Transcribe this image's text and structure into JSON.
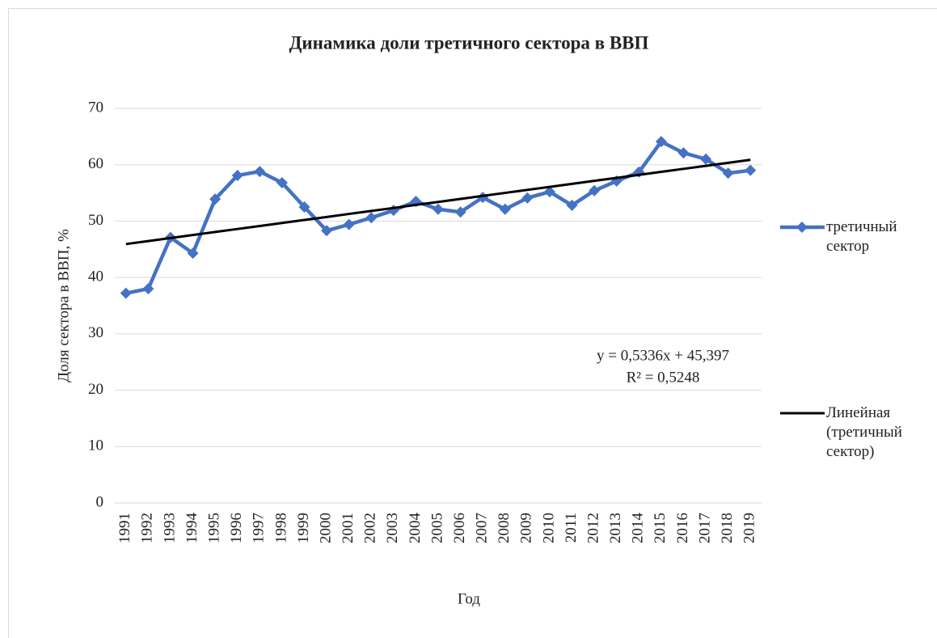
{
  "chart_data": {
    "type": "line",
    "title": "Динамика доли третичного сектора в ВВП",
    "x_label": "Год",
    "y_label": "Доля сектора в ВВП, %",
    "categories": [
      "1991",
      "1992",
      "1993",
      "1994",
      "1995",
      "1996",
      "1997",
      "1998",
      "1999",
      "2000",
      "2001",
      "2002",
      "2003",
      "2004",
      "2005",
      "2006",
      "2007",
      "2008",
      "2009",
      "2010",
      "2011",
      "2012",
      "2013",
      "2014",
      "2015",
      "2016",
      "2017",
      "2018",
      "2019"
    ],
    "series": [
      {
        "name": "третичный сектор",
        "color": "#4472c4",
        "marker": "diamond",
        "values": [
          37.2,
          38.0,
          47.1,
          44.3,
          53.9,
          58.1,
          58.8,
          56.8,
          52.5,
          48.3,
          49.4,
          50.6,
          51.9,
          53.5,
          52.1,
          51.6,
          54.2,
          52.1,
          54.1,
          55.2,
          52.8,
          55.4,
          57.1,
          58.7,
          64.1,
          62.1,
          61.0,
          58.5,
          59.0
        ]
      },
      {
        "name": "Линейная (третичный сектор)",
        "color": "#000000",
        "marker": "none",
        "values": [
          45.93,
          46.46,
          47.0,
          47.53,
          48.07,
          48.6,
          49.13,
          49.67,
          50.2,
          50.73,
          51.27,
          51.8,
          52.33,
          52.87,
          53.4,
          53.93,
          54.47,
          55.0,
          55.54,
          56.07,
          56.6,
          57.14,
          57.67,
          58.2,
          58.74,
          59.27,
          59.8,
          60.34,
          60.87
        ]
      }
    ],
    "annotations": [
      "y = 0,5336x + 45,397",
      "R² = 0,5248"
    ],
    "ylim": [
      0,
      70
    ],
    "yticks": [
      0,
      10,
      20,
      30,
      40,
      50,
      60,
      70
    ],
    "grid": true,
    "legend": "right"
  }
}
